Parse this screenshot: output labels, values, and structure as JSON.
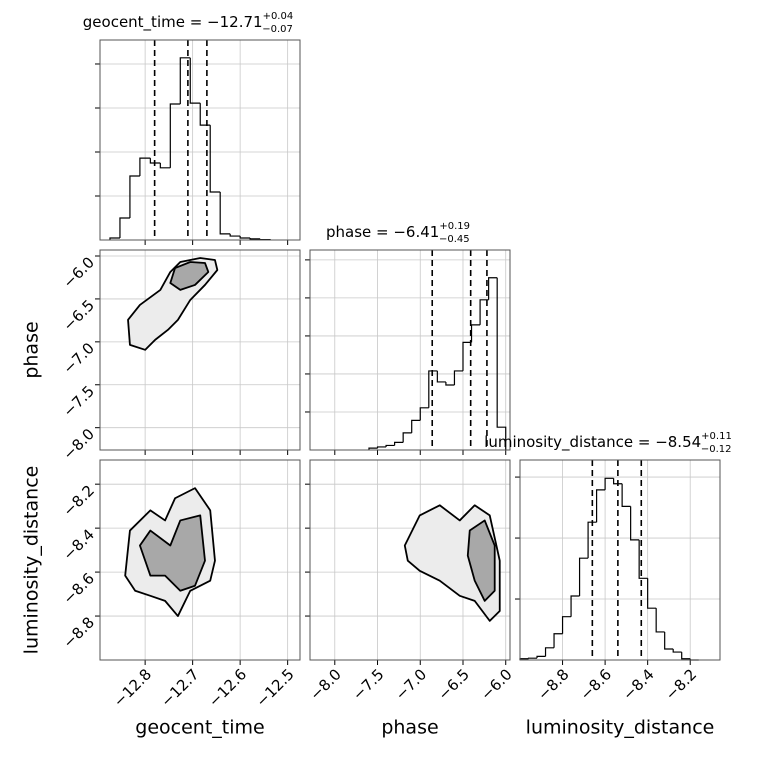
{
  "chart_data": [
    {
      "type": "histogram",
      "title": "geocent_time = −12.71",
      "title_sup": "+0.04",
      "title_sub": "−0.07",
      "bins": [
        -12.874,
        -12.853,
        -12.832,
        -12.811,
        -12.789,
        -12.768,
        -12.747,
        -12.726,
        -12.705,
        -12.684,
        -12.663,
        -12.642,
        -12.621,
        -12.6,
        -12.579,
        -12.558,
        -12.537
      ],
      "counts": [
        45,
        500,
        1455,
        1860,
        1750,
        1640,
        3090,
        4140,
        3110,
        2610,
        1090,
        140,
        90,
        45,
        25,
        10
      ],
      "quantiles": [
        -12.78,
        -12.71,
        -12.67
      ],
      "xlim": [
        -12.895,
        -12.474
      ],
      "xticks": [
        -12.8,
        -12.7,
        -12.6,
        -12.5
      ],
      "ylim": [
        0,
        4545
      ],
      "yticks": [
        1000,
        2000,
        3000,
        4000
      ],
      "grid": true
    },
    {
      "type": "contour",
      "ylabel": "phase",
      "contours": [
        {
          "x": [
            -12.832,
            -12.836,
            -12.811,
            -12.768,
            -12.747,
            -12.726,
            -12.684,
            -12.653,
            -12.648,
            -12.674,
            -12.705,
            -12.731,
            -12.752,
            -12.779,
            -12.8
          ],
          "y": [
            -7.035,
            -6.744,
            -6.57,
            -6.395,
            -6.186,
            -6.07,
            -6.023,
            -6.047,
            -6.163,
            -6.337,
            -6.512,
            -6.744,
            -6.86,
            -6.977,
            -7.093
          ]
        },
        {
          "x": [
            -12.747,
            -12.737,
            -12.705,
            -12.674,
            -12.667,
            -12.695,
            -12.726
          ],
          "y": [
            -6.314,
            -6.14,
            -6.07,
            -6.081,
            -6.186,
            -6.337,
            -6.395
          ]
        }
      ],
      "xlim": [
        -12.895,
        -12.474
      ],
      "xticks": [
        -12.8,
        -12.7,
        -12.6,
        -12.5
      ],
      "ylim": [
        -8.26,
        -5.93
      ],
      "yticks": [
        {
          "value": -6.0,
          "label": "−6.0"
        },
        {
          "value": -6.5,
          "label": "−6.5"
        },
        {
          "value": -7.0,
          "label": "−7.0"
        },
        {
          "value": -7.5,
          "label": "−7.5"
        },
        {
          "value": -8.0,
          "label": "−8.0"
        }
      ],
      "grid": true
    },
    {
      "type": "histogram",
      "title": "phase = −6.41",
      "title_sup": "+0.19",
      "title_sub": "−0.45",
      "bins": [
        -7.6,
        -7.5,
        -7.4,
        -7.3,
        -7.2,
        -7.1,
        -7.0,
        -6.9,
        -6.8,
        -6.7,
        -6.6,
        -6.5,
        -6.4,
        -6.3,
        -6.2,
        -6.1,
        -6.0
      ],
      "counts": [
        50,
        80,
        120,
        200,
        450,
        780,
        1110,
        2080,
        1790,
        1710,
        2080,
        2830,
        3290,
        3950,
        4530,
        600
      ],
      "quantiles": [
        -6.86,
        -6.41,
        -6.22
      ],
      "xlim": [
        -8.29,
        -5.95
      ],
      "xticks": [
        -8.0,
        -7.5,
        -7.0,
        -6.5,
        -6.0
      ],
      "ylim": [
        0,
        5260
      ],
      "yticks": [
        1000,
        2000,
        3000,
        4000,
        5000
      ],
      "grid": true
    },
    {
      "type": "contour",
      "xlabel": "geocent_time",
      "ylabel": "luminosity_distance",
      "contours": [
        {
          "x": [
            -12.842,
            -12.832,
            -12.789,
            -12.758,
            -12.737,
            -12.695,
            -12.663,
            -12.653,
            -12.663,
            -12.705,
            -12.731,
            -12.758,
            -12.789,
            -12.821
          ],
          "y": [
            -8.616,
            -8.411,
            -8.319,
            -8.365,
            -8.264,
            -8.218,
            -8.319,
            -8.548,
            -8.639,
            -8.685,
            -8.8,
            -8.731,
            -8.708,
            -8.685
          ]
        },
        {
          "x": [
            -12.811,
            -12.789,
            -12.747,
            -12.726,
            -12.684,
            -12.674,
            -12.695,
            -12.726,
            -12.758,
            -12.789
          ],
          "y": [
            -8.479,
            -8.411,
            -8.479,
            -8.365,
            -8.342,
            -8.548,
            -8.662,
            -8.685,
            -8.616,
            -8.616
          ]
        }
      ],
      "xlim": [
        -12.895,
        -12.474
      ],
      "xticks": [
        {
          "value": -12.8,
          "label": "−12.8"
        },
        {
          "value": -12.7,
          "label": "−12.7"
        },
        {
          "value": -12.6,
          "label": "−12.6"
        },
        {
          "value": -12.5,
          "label": "−12.5"
        }
      ],
      "ylim": [
        -9.0,
        -8.09
      ],
      "yticks": [
        {
          "value": -8.2,
          "label": "−8.2"
        },
        {
          "value": -8.4,
          "label": "−8.4"
        },
        {
          "value": -8.6,
          "label": "−8.6"
        },
        {
          "value": -8.8,
          "label": "−8.8"
        }
      ],
      "grid": true
    },
    {
      "type": "contour",
      "xlabel": "phase",
      "contours": [
        {
          "x": [
            -7.181,
            -7.006,
            -6.772,
            -6.538,
            -6.363,
            -6.187,
            -6.07,
            -6.07,
            -6.187,
            -6.363,
            -6.538,
            -6.772,
            -7.006,
            -7.146
          ],
          "y": [
            -8.479,
            -8.342,
            -8.296,
            -8.365,
            -8.296,
            -8.342,
            -8.548,
            -8.777,
            -8.822,
            -8.731,
            -8.708,
            -8.639,
            -8.594,
            -8.548
          ]
        },
        {
          "x": [
            -6.421,
            -6.246,
            -6.129,
            -6.129,
            -6.246,
            -6.363,
            -6.444
          ],
          "y": [
            -8.411,
            -8.365,
            -8.479,
            -8.685,
            -8.731,
            -8.639,
            -8.525
          ]
        }
      ],
      "xlim": [
        -8.29,
        -5.95
      ],
      "xticks": [
        {
          "value": -8.0,
          "label": "−8.0"
        },
        {
          "value": -7.5,
          "label": "−7.5"
        },
        {
          "value": -7.0,
          "label": "−7.0"
        },
        {
          "value": -6.5,
          "label": "−6.5"
        },
        {
          "value": -6.0,
          "label": "−6.0"
        }
      ],
      "ylim": [
        -9.0,
        -8.09
      ],
      "yticks": [
        -8.2,
        -8.4,
        -8.6,
        -8.8
      ],
      "grid": true
    },
    {
      "type": "histogram",
      "title": "luminosity_distance = −8.54",
      "title_sup": "+0.11",
      "title_sub": "−0.12",
      "xlabel": "luminosity_distance",
      "bins": [
        -9.0,
        -8.96,
        -8.92,
        -8.88,
        -8.84,
        -8.8,
        -8.76,
        -8.72,
        -8.68,
        -8.64,
        -8.6,
        -8.56,
        -8.52,
        -8.48,
        -8.44,
        -8.4,
        -8.36,
        -8.32,
        -8.28,
        -8.24,
        -8.2,
        -8.16
      ],
      "counts": [
        20,
        30,
        60,
        200,
        430,
        710,
        1050,
        1670,
        2260,
        2790,
        2980,
        2890,
        2520,
        1970,
        1340,
        850,
        460,
        180,
        130,
        20,
        0
      ],
      "quantiles": [
        -8.66,
        -8.54,
        -8.43
      ],
      "xlim": [
        -9.0,
        -8.06
      ],
      "xticks": [
        {
          "value": -8.8,
          "label": "−8.8"
        },
        {
          "value": -8.6,
          "label": "−8.6"
        },
        {
          "value": -8.4,
          "label": "−8.4"
        },
        {
          "value": -8.2,
          "label": "−8.2"
        }
      ],
      "ylim": [
        0,
        3280
      ],
      "yticks": [
        1000,
        2000,
        3000
      ],
      "grid": true
    }
  ]
}
